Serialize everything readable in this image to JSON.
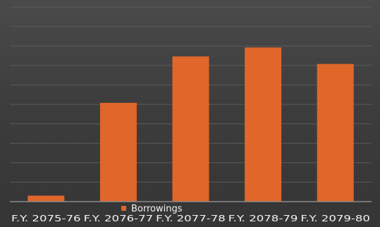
{
  "chart_data": {
    "type": "bar",
    "categories": [
      "F.Y. 2075-76",
      "F.Y. 2076-77",
      "F.Y. 2077-78",
      "F.Y. 2078-79",
      "F.Y. 2079-80"
    ],
    "series": [
      {
        "name": "Borrowings",
        "values": [
          4,
          66,
          97,
          103,
          92
        ],
        "color": "#e0662a"
      }
    ],
    "ylim": [
      0,
      130
    ],
    "grid": true,
    "legend": "bottom",
    "title": "",
    "xlabel": "",
    "ylabel": ""
  }
}
